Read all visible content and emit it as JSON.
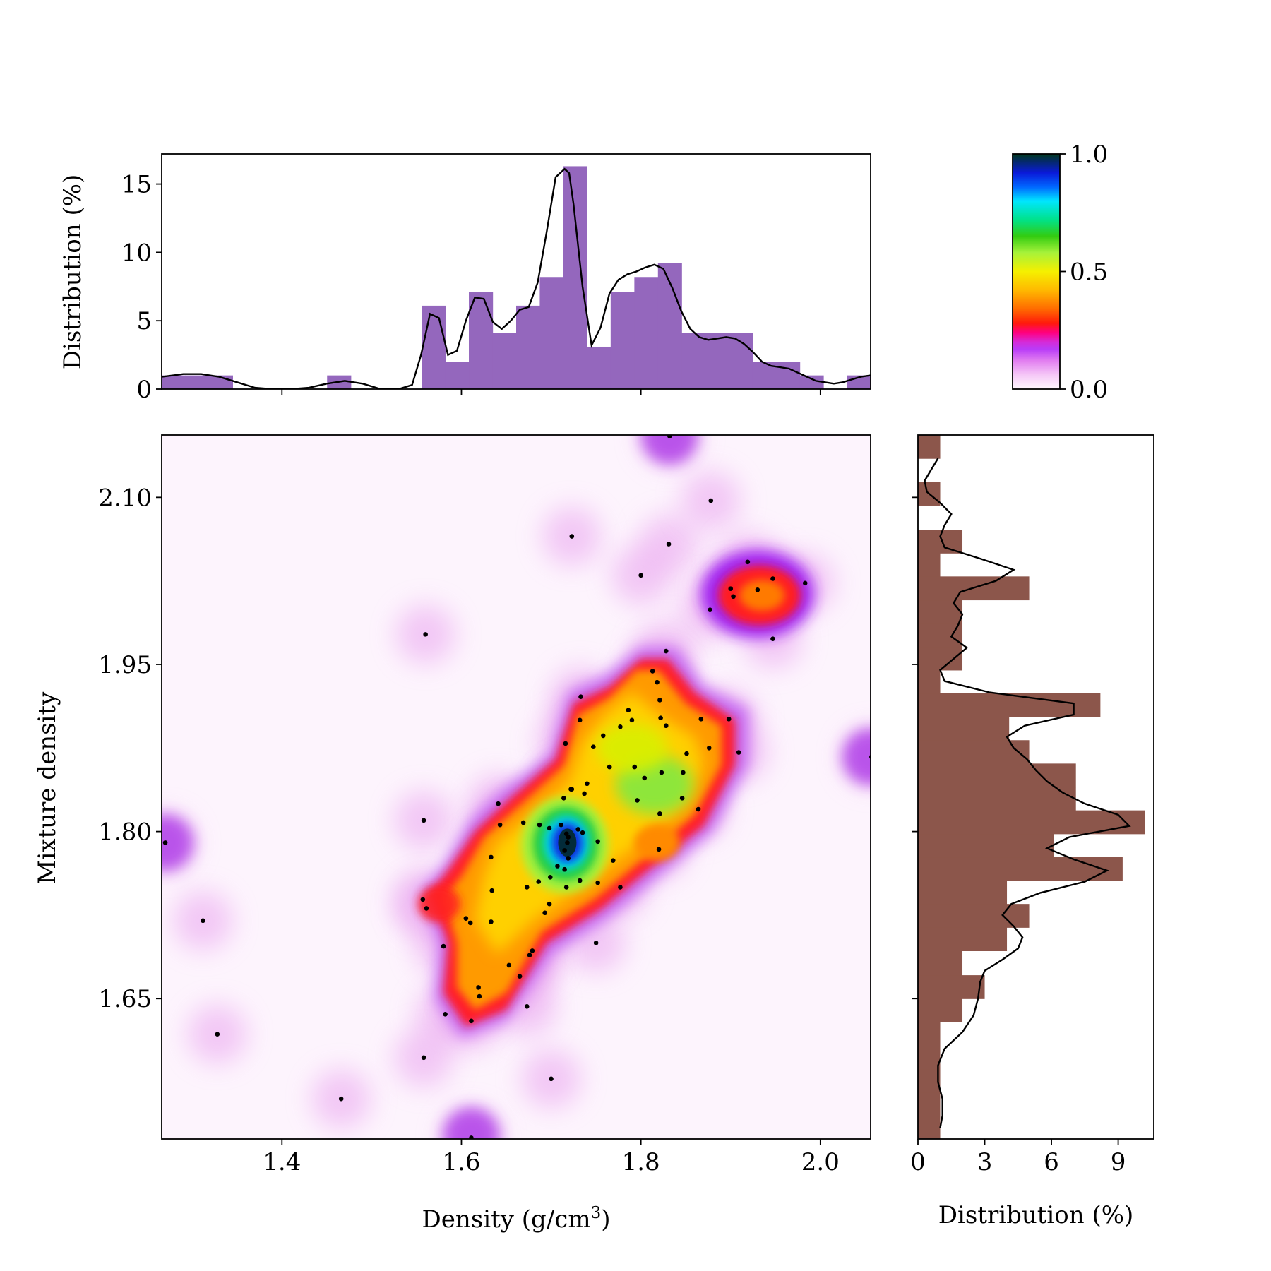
{
  "chart_data": [
    {
      "id": "top-histogram",
      "type": "bar",
      "ylabel": "Distribution (%)",
      "xlim": [
        1.266,
        2.056
      ],
      "ylim": [
        0,
        17.2
      ],
      "yticks": [
        0,
        5,
        10,
        15
      ],
      "ytick_labels": [
        "0",
        "5",
        "10",
        "15"
      ],
      "xticks": [
        1.4,
        1.6,
        1.8,
        2.0
      ],
      "bar_color": "#9467bd",
      "bin_edges": [
        1.266,
        1.2923,
        1.3187,
        1.345,
        1.3713,
        1.3977,
        1.424,
        1.4503,
        1.4767,
        1.503,
        1.5293,
        1.5557,
        1.582,
        1.6083,
        1.6347,
        1.661,
        1.6873,
        1.7137,
        1.74,
        1.7663,
        1.7927,
        1.819,
        1.8453,
        1.8717,
        1.898,
        1.9243,
        1.9507,
        1.977,
        2.0033,
        2.0297,
        2.056
      ],
      "values": [
        1,
        1,
        1,
        0,
        0,
        0,
        0,
        1,
        0,
        0,
        0,
        6.1,
        2,
        7.1,
        4.1,
        6.1,
        8.2,
        16.3,
        3.1,
        7.1,
        8.2,
        9.2,
        4.1,
        4.1,
        4.1,
        2,
        2,
        1,
        0,
        1
      ],
      "kde": {
        "x": [
          1.266,
          1.29,
          1.31,
          1.33,
          1.35,
          1.37,
          1.39,
          1.41,
          1.43,
          1.45,
          1.47,
          1.49,
          1.51,
          1.53,
          1.545,
          1.555,
          1.565,
          1.575,
          1.585,
          1.595,
          1.605,
          1.615,
          1.625,
          1.635,
          1.645,
          1.655,
          1.665,
          1.675,
          1.685,
          1.695,
          1.705,
          1.715,
          1.72,
          1.725,
          1.735,
          1.745,
          1.755,
          1.765,
          1.775,
          1.785,
          1.795,
          1.805,
          1.815,
          1.825,
          1.835,
          1.845,
          1.855,
          1.865,
          1.875,
          1.885,
          1.895,
          1.905,
          1.915,
          1.925,
          1.935,
          1.945,
          1.955,
          1.965,
          1.975,
          1.985,
          1.995,
          2.005,
          2.015,
          2.025,
          2.035,
          2.045,
          2.056
        ],
        "y": [
          0.9,
          1.1,
          1.1,
          0.9,
          0.5,
          0.1,
          0.0,
          0.0,
          0.1,
          0.4,
          0.6,
          0.4,
          0.0,
          0.0,
          0.3,
          2.5,
          5.5,
          5.2,
          2.5,
          2.8,
          5.0,
          6.7,
          6.6,
          4.9,
          4.4,
          5.0,
          5.8,
          6.0,
          7.8,
          11.5,
          15.5,
          16.1,
          15.8,
          13.5,
          7.5,
          3.2,
          4.5,
          7.0,
          8.0,
          8.4,
          8.6,
          8.9,
          9.1,
          8.8,
          7.4,
          5.7,
          4.4,
          3.8,
          3.6,
          3.7,
          3.8,
          3.7,
          3.3,
          2.7,
          2.0,
          1.7,
          1.6,
          1.5,
          1.2,
          0.9,
          0.6,
          0.5,
          0.4,
          0.5,
          0.7,
          0.9,
          1.0
        ]
      }
    },
    {
      "id": "right-histogram",
      "type": "bar",
      "orientation": "horizontal",
      "xlabel": "Distribution (%)",
      "xlim": [
        0,
        10.6
      ],
      "ylim": [
        1.524,
        2.156
      ],
      "xticks": [
        0,
        3,
        6,
        9
      ],
      "xtick_labels": [
        "0",
        "3",
        "6",
        "9"
      ],
      "yticks": [
        1.65,
        1.8,
        1.95,
        2.1
      ],
      "bar_color": "#8c564b",
      "bin_edges": [
        1.524,
        1.545,
        1.566,
        1.587,
        1.608,
        1.629,
        1.65,
        1.671,
        1.693,
        1.714,
        1.735,
        1.756,
        1.777,
        1.798,
        1.819,
        1.84,
        1.861,
        1.882,
        1.903,
        1.924,
        1.945,
        1.966,
        1.987,
        2.008,
        2.029,
        2.05,
        2.071,
        2.093,
        2.114,
        2.135,
        2.156
      ],
      "values": [
        1,
        1,
        1,
        1,
        1,
        2,
        3,
        2,
        4,
        5,
        4,
        9.2,
        6.1,
        10.2,
        7.1,
        7.1,
        5,
        4.1,
        8.2,
        1,
        2,
        2,
        2,
        5,
        1,
        2,
        0,
        1,
        0,
        1
      ],
      "kde": {
        "y": [
          1.534,
          1.545,
          1.56,
          1.575,
          1.59,
          1.605,
          1.62,
          1.635,
          1.65,
          1.665,
          1.675,
          1.685,
          1.695,
          1.705,
          1.715,
          1.725,
          1.735,
          1.745,
          1.755,
          1.765,
          1.775,
          1.785,
          1.795,
          1.805,
          1.815,
          1.825,
          1.835,
          1.845,
          1.855,
          1.865,
          1.875,
          1.885,
          1.895,
          1.905,
          1.915,
          1.925,
          1.935,
          1.945,
          1.955,
          1.965,
          1.975,
          1.985,
          1.995,
          2.005,
          2.015,
          2.025,
          2.035,
          2.045,
          2.055,
          2.065,
          2.075,
          2.085,
          2.095,
          2.105,
          2.115,
          2.125,
          2.135
        ],
        "x": [
          1.0,
          1.1,
          1.1,
          0.9,
          0.9,
          1.2,
          2.0,
          2.5,
          2.7,
          2.8,
          3.0,
          3.8,
          4.5,
          4.7,
          4.3,
          3.8,
          4.2,
          5.5,
          7.5,
          8.5,
          7.0,
          5.8,
          6.8,
          9.5,
          9.0,
          7.5,
          6.5,
          5.8,
          5.3,
          4.9,
          4.3,
          4.0,
          4.8,
          7.0,
          7.0,
          3.2,
          1.2,
          1.0,
          1.6,
          2.2,
          1.5,
          1.8,
          2.0,
          1.6,
          1.9,
          3.5,
          4.3,
          2.8,
          1.2,
          1.0,
          1.2,
          1.5,
          1.0,
          0.4,
          0.3,
          0.6,
          0.9
        ]
      }
    },
    {
      "id": "main-density",
      "type": "heatmap",
      "xlabel_main": "Density (g/cm",
      "xlabel_sup": "3",
      "xlabel_close": ")",
      "ylabel": "Mixture density",
      "xlim": [
        1.266,
        2.056
      ],
      "ylim": [
        1.524,
        2.156
      ],
      "xticks": [
        1.4,
        1.6,
        1.8,
        2.0
      ],
      "xtick_labels": [
        "1.4",
        "1.6",
        "1.8",
        "2.0"
      ],
      "yticks": [
        1.65,
        1.8,
        1.95,
        2.1
      ],
      "ytick_labels": [
        "1.65",
        "1.80",
        "1.95",
        "2.10"
      ],
      "colormap": "gist_ncar_r",
      "points": [
        [
          1.56,
          1.977
        ],
        [
          1.723,
          2.065
        ],
        [
          1.831,
          2.058
        ],
        [
          1.878,
          2.097
        ],
        [
          1.8,
          2.03
        ],
        [
          1.919,
          2.042
        ],
        [
          1.9,
          2.018
        ],
        [
          1.93,
          2.017
        ],
        [
          1.947,
          2.027
        ],
        [
          1.983,
          2.023
        ],
        [
          1.903,
          2.011
        ],
        [
          1.877,
          1.999
        ],
        [
          1.947,
          1.973
        ],
        [
          1.828,
          1.962
        ],
        [
          1.832,
          2.155
        ],
        [
          1.818,
          1.934
        ],
        [
          1.733,
          1.921
        ],
        [
          1.813,
          1.944
        ],
        [
          1.821,
          1.918
        ],
        [
          1.786,
          1.909
        ],
        [
          1.822,
          1.902
        ],
        [
          1.867,
          1.901
        ],
        [
          1.898,
          1.901
        ],
        [
          1.732,
          1.9
        ],
        [
          1.79,
          1.9
        ],
        [
          1.828,
          1.895
        ],
        [
          1.777,
          1.894
        ],
        [
          1.758,
          1.886
        ],
        [
          1.716,
          1.879
        ],
        [
          1.747,
          1.876
        ],
        [
          1.876,
          1.875
        ],
        [
          1.909,
          1.871
        ],
        [
          1.851,
          1.87
        ],
        [
          1.765,
          1.858
        ],
        [
          1.793,
          1.858
        ],
        [
          1.823,
          1.853
        ],
        [
          1.847,
          1.853
        ],
        [
          1.804,
          1.848
        ],
        [
          1.74,
          1.843
        ],
        [
          1.722,
          1.838
        ],
        [
          1.723,
          1.838
        ],
        [
          1.737,
          1.834
        ],
        [
          1.714,
          1.83
        ],
        [
          1.846,
          1.83
        ],
        [
          1.796,
          1.828
        ],
        [
          1.641,
          1.825
        ],
        [
          1.864,
          1.82
        ],
        [
          1.821,
          1.816
        ],
        [
          1.558,
          1.81
        ],
        [
          1.643,
          1.806
        ],
        [
          1.669,
          1.808
        ],
        [
          1.687,
          1.806
        ],
        [
          1.698,
          1.803
        ],
        [
          1.711,
          1.806
        ],
        [
          1.73,
          1.802
        ],
        [
          1.717,
          1.798
        ],
        [
          1.735,
          1.799
        ],
        [
          1.719,
          1.795
        ],
        [
          1.718,
          1.79
        ],
        [
          1.752,
          1.791
        ],
        [
          1.715,
          1.783
        ],
        [
          1.82,
          1.784
        ],
        [
          1.633,
          1.777
        ],
        [
          1.719,
          1.776
        ],
        [
          1.769,
          1.774
        ],
        [
          1.707,
          1.769
        ],
        [
          1.715,
          1.766
        ],
        [
          1.699,
          1.759
        ],
        [
          1.686,
          1.755
        ],
        [
          1.732,
          1.756
        ],
        [
          1.752,
          1.754
        ],
        [
          1.777,
          1.75
        ],
        [
          1.673,
          1.75
        ],
        [
          1.634,
          1.747
        ],
        [
          1.557,
          1.739
        ],
        [
          1.717,
          1.75
        ],
        [
          1.561,
          1.731
        ],
        [
          1.693,
          1.727
        ],
        [
          1.698,
          1.735
        ],
        [
          1.605,
          1.722
        ],
        [
          1.61,
          1.718
        ],
        [
          1.312,
          1.72
        ],
        [
          1.633,
          1.719
        ],
        [
          1.75,
          1.7
        ],
        [
          1.58,
          1.697
        ],
        [
          1.679,
          1.693
        ],
        [
          1.676,
          1.689
        ],
        [
          1.653,
          1.68
        ],
        [
          1.665,
          1.67
        ],
        [
          1.619,
          1.66
        ],
        [
          1.62,
          1.652
        ],
        [
          1.673,
          1.643
        ],
        [
          1.582,
          1.636
        ],
        [
          1.611,
          1.63
        ],
        [
          1.328,
          1.618
        ],
        [
          1.558,
          1.597
        ],
        [
          1.7,
          1.578
        ],
        [
          1.466,
          1.56
        ],
        [
          1.611,
          1.525
        ],
        [
          1.27,
          1.79
        ],
        [
          2.057,
          1.867
        ]
      ],
      "density_peaks": [
        {
          "x": 1.718,
          "y": 1.789,
          "level": 1.0
        },
        {
          "x": 1.818,
          "y": 1.84,
          "level": 0.55
        },
        {
          "x": 1.935,
          "y": 2.012,
          "level": 0.32
        },
        {
          "x": 1.595,
          "y": 1.733,
          "level": 0.3
        }
      ]
    }
  ],
  "colorbar": {
    "ticks": [
      0.0,
      0.5,
      1.0
    ],
    "tick_labels": [
      "0.0",
      "0.5",
      "1.0"
    ]
  }
}
